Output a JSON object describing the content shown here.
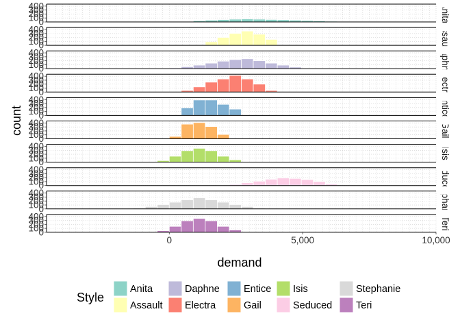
{
  "chart_data": {
    "type": "bar",
    "subtype": "faceted-histogram",
    "xlabel": "demand",
    "ylabel": "count",
    "xlim": [
      -4600,
      10000
    ],
    "x_ticks": [
      0,
      5000,
      10000
    ],
    "x_tick_labels": [
      "0",
      "5,000",
      "10,000"
    ],
    "ylim": [
      0,
      450
    ],
    "y_ticks": [
      0,
      100,
      200,
      300,
      400
    ],
    "y_tick_labels": [
      "0",
      "100",
      "200",
      "300",
      "400"
    ],
    "bin_width": 450,
    "grid": true,
    "legend": {
      "title": "Style",
      "position": "bottom",
      "columns": [
        [
          "Anita",
          "Assault"
        ],
        [
          "Daphne",
          "Electra"
        ],
        [
          "Entice",
          "Gail"
        ],
        [
          "Isis",
          "Seduced"
        ],
        [
          "Stephanie",
          "Teri"
        ]
      ]
    },
    "panels": [
      {
        "name": "Anita",
        "strip": "Anita",
        "color": "#8DD3C7",
        "bins": [
          [
            0,
            8
          ],
          [
            450,
            15
          ],
          [
            900,
            30
          ],
          [
            1350,
            45
          ],
          [
            1800,
            60
          ],
          [
            2250,
            70
          ],
          [
            2700,
            75
          ],
          [
            3150,
            70
          ],
          [
            3600,
            62
          ],
          [
            4050,
            55
          ],
          [
            4500,
            45
          ],
          [
            4950,
            35
          ],
          [
            5400,
            25
          ],
          [
            5850,
            18
          ],
          [
            6300,
            10
          ],
          [
            6750,
            5
          ]
        ]
      },
      {
        "name": "Assault",
        "strip": "Assault",
        "color": "#FFFFB3",
        "bins": [
          [
            1350,
            90
          ],
          [
            1800,
            200
          ],
          [
            2250,
            300
          ],
          [
            2700,
            360
          ],
          [
            3150,
            280
          ],
          [
            3600,
            150
          ]
        ]
      },
      {
        "name": "Daphne",
        "strip": "Daphne",
        "color": "#BEBADA",
        "bins": [
          [
            0,
            20
          ],
          [
            450,
            50
          ],
          [
            900,
            90
          ],
          [
            1350,
            140
          ],
          [
            1800,
            190
          ],
          [
            2250,
            230
          ],
          [
            2700,
            250
          ],
          [
            3150,
            200
          ],
          [
            3600,
            140
          ],
          [
            4050,
            90
          ],
          [
            4500,
            40
          ]
        ]
      },
      {
        "name": "Electra",
        "strip": "Electra",
        "color": "#FB8072",
        "bins": [
          [
            450,
            40
          ],
          [
            900,
            130
          ],
          [
            1350,
            250
          ],
          [
            1800,
            330
          ],
          [
            2250,
            420
          ],
          [
            2700,
            330
          ],
          [
            3150,
            200
          ],
          [
            3600,
            40
          ]
        ]
      },
      {
        "name": "Entice",
        "strip": "Entice",
        "color": "#80B1D3",
        "bins": [
          [
            450,
            190
          ],
          [
            900,
            390
          ],
          [
            1350,
            390
          ],
          [
            1800,
            280
          ],
          [
            2250,
            160
          ]
        ]
      },
      {
        "name": "Gail",
        "strip": "Gail",
        "color": "#FDB462",
        "bins": [
          [
            0,
            60
          ],
          [
            450,
            370
          ],
          [
            900,
            410
          ],
          [
            1350,
            310
          ],
          [
            1800,
            110
          ]
        ]
      },
      {
        "name": "Isis",
        "strip": "Isis",
        "color": "#B3DE69",
        "bins": [
          [
            -450,
            40
          ],
          [
            0,
            150
          ],
          [
            450,
            290
          ],
          [
            900,
            350
          ],
          [
            1350,
            290
          ],
          [
            1800,
            150
          ],
          [
            2250,
            60
          ]
        ]
      },
      {
        "name": "Seduced",
        "strip": "Seduced",
        "color": "#FCCDE5",
        "bins": [
          [
            1800,
            10
          ],
          [
            2250,
            30
          ],
          [
            2700,
            70
          ],
          [
            3150,
            110
          ],
          [
            3600,
            160
          ],
          [
            4050,
            190
          ],
          [
            4500,
            180
          ],
          [
            4950,
            150
          ],
          [
            5400,
            100
          ],
          [
            5850,
            40
          ]
        ]
      },
      {
        "name": "Stephanie",
        "strip": "Stephanie",
        "color": "#D9D9D9",
        "bins": [
          [
            -1350,
            20
          ],
          [
            -900,
            60
          ],
          [
            -450,
            110
          ],
          [
            0,
            170
          ],
          [
            450,
            230
          ],
          [
            900,
            280
          ],
          [
            1350,
            230
          ],
          [
            1800,
            170
          ],
          [
            2250,
            110
          ],
          [
            2700,
            60
          ],
          [
            3150,
            20
          ]
        ]
      },
      {
        "name": "Teri",
        "strip": "Teri",
        "color": "#BC80BD",
        "bins": [
          [
            -450,
            40
          ],
          [
            0,
            150
          ],
          [
            450,
            290
          ],
          [
            900,
            350
          ],
          [
            1350,
            290
          ],
          [
            1800,
            150
          ],
          [
            2250,
            60
          ]
        ]
      }
    ]
  }
}
